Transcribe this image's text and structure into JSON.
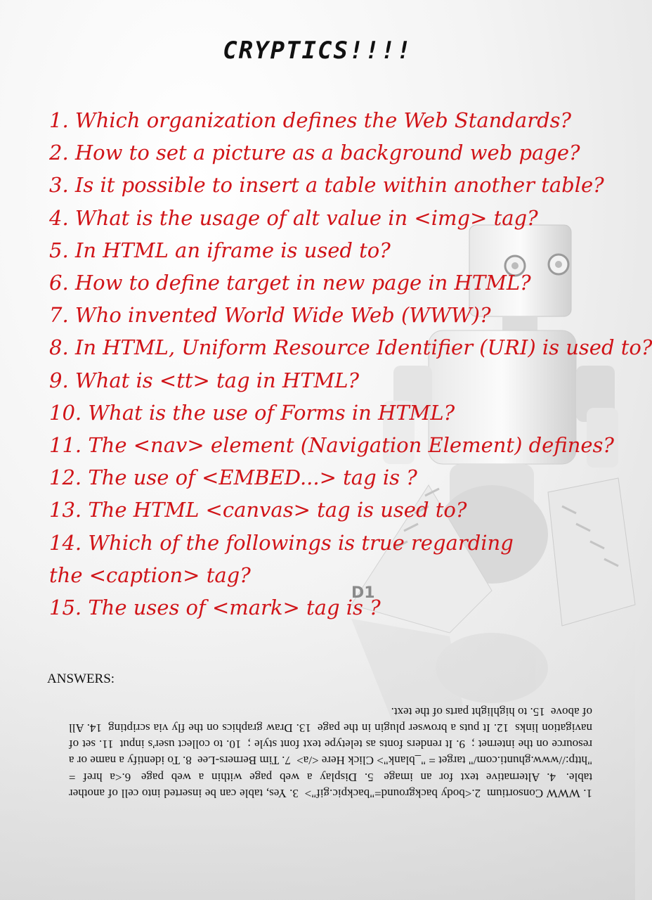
{
  "title": "CRYPTICS!!!!",
  "questions": [
    "1.  Which organization defines the Web Standards?",
    "2.  How to set a picture as a background web page?",
    "3.  Is it possible to insert a table within another table?",
    "4.  What is the usage of alt value in <img> tag?",
    "5.  In HTML an iframe is used to?",
    "6.  How to define target in new page in HTML?",
    "7.  Who invented World Wide Web (WWW)?",
    "8.  In HTML, Uniform Resource Identifier (URI) is used to?",
    "9.  What is <tt> tag in HTML?",
    "10. What is the use of Forms in HTML?",
    "11.  The <nav> element (Navigation Element) defines?",
    "12. The use of <EMBED...> tag is ?",
    "13. The HTML <canvas> tag is used to?",
    "14. Which of the followings is true regarding the <caption> tag?",
    "15. The uses of <mark> tag is ?"
  ],
  "answers_heading": "ANSWERS:",
  "answers": [
    "1. WWW Consortium",
    "2.<body background=\"backpic.gif\">",
    "3. Yes, table can be inserted into cell of another table.",
    "4. Alternative text for an image",
    "5. Display a web page within a web page",
    "6.<a href = \"http://www.ghunti.com/\" target = \"_blank\"> Click Here </a>",
    "7. Tim Berners-Lee",
    "8. To identify a name or a resource on the internet ;",
    "9. It renders fonts as teletype text font style ;",
    "10. to collect user's input",
    "11. set of navigation links",
    "12. It puts a browser plugin in the page",
    "13. Draw graphics on the fly via scripting",
    "14. All of above",
    "15. to highlight parts of the text."
  ],
  "robot_label": "D1"
}
